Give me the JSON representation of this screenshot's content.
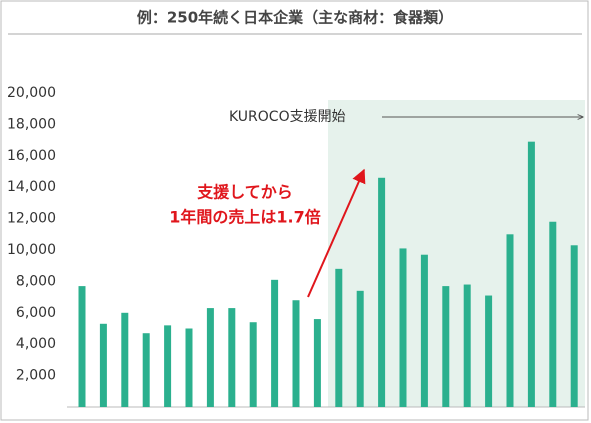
{
  "chart_data": {
    "type": "bar",
    "title": "例：250年続く日本企業（主な商材：食器類）",
    "annotations": [
      "KUROCO支援開始",
      "支援してから",
      "1年間の売上は1.7倍"
    ],
    "values": [
      7700,
      5300,
      6000,
      4700,
      5200,
      5000,
      6300,
      6300,
      5400,
      8100,
      6800,
      5600,
      8800,
      7400,
      14600,
      10100,
      9700,
      7700,
      7800,
      7100,
      11000,
      16900,
      11800,
      10300
    ],
    "color": "#2bb08e",
    "ylim": [
      0,
      20000
    ],
    "yticks": [
      {
        "value": 2000,
        "label": "2,000"
      },
      {
        "value": 4000,
        "label": "4,000"
      },
      {
        "value": 6000,
        "label": "6,000"
      },
      {
        "value": 8000,
        "label": "8,000"
      },
      {
        "value": 10000,
        "label": "10,000"
      },
      {
        "value": 12000,
        "label": "12,000"
      },
      {
        "value": 14000,
        "label": "14,000"
      },
      {
        "value": 16000,
        "label": "16,000"
      },
      {
        "value": 18000,
        "label": "18,000"
      },
      {
        "value": 20000,
        "label": "20,000"
      }
    ],
    "grid": false
  }
}
